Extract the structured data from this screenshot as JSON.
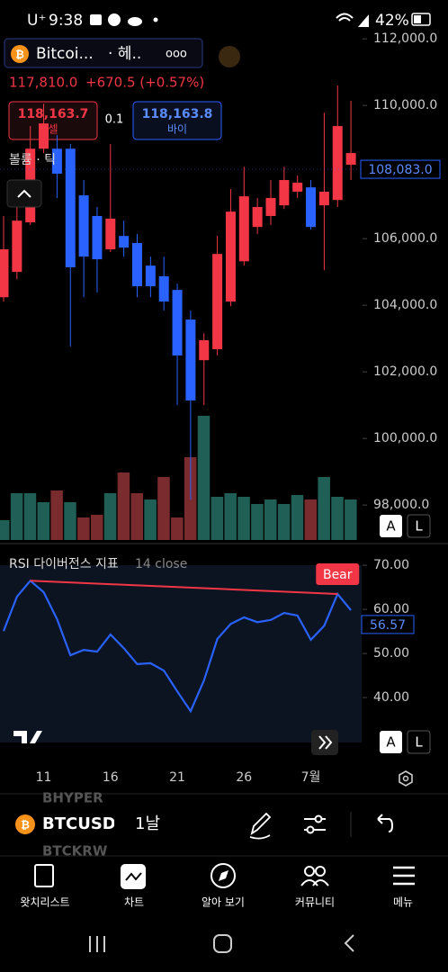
{
  "status_bar": {
    "carrier": "U⁺",
    "time": "9:38",
    "battery": "42%"
  },
  "header": {
    "symbol": "Bitcoi...",
    "exchange": "· 헤..",
    "more": "ooo",
    "price": "117,810.0",
    "change": "+670.5 (+0.57%)"
  },
  "trade": {
    "sell_price": "118,163.7",
    "sell": "셀",
    "spread": "0.1",
    "buy_price": "118,163.8",
    "buy": "바이"
  },
  "volume_label": "볼륨 · 틱",
  "scale_buttons": {
    "auto": "A",
    "log": "L"
  },
  "chart_data": [
    {
      "type": "candlestick",
      "categories": [
        null,
        null,
        null,
        "11",
        null,
        null,
        null,
        null,
        "16",
        null,
        null,
        null,
        null,
        "21",
        null,
        null,
        null,
        null,
        "26",
        null,
        null,
        null,
        null,
        "7월",
        null,
        null,
        null
      ],
      "open": [
        104240,
        105000,
        106490,
        108700,
        108700,
        108700,
        107300,
        106680,
        105680,
        106080,
        105870,
        105190,
        104870,
        104460,
        103570,
        102350,
        102680,
        104110,
        105320,
        106350,
        106680,
        107000,
        107410,
        107540,
        107000,
        107160,
        108220
      ],
      "high": [
        106680,
        107350,
        109380,
        110050,
        109110,
        108840,
        107760,
        106950,
        108840,
        106540,
        106140,
        105460,
        105460,
        104650,
        103840,
        103160,
        106080,
        107490,
        108160,
        107220,
        107760,
        108160,
        107890,
        107760,
        109780,
        110600,
        110140
      ],
      "low": [
        104110,
        104780,
        106410,
        108570,
        107220,
        102760,
        104240,
        104380,
        105600,
        105460,
        104240,
        104240,
        103840,
        101000,
        98160,
        101000,
        102490,
        103970,
        105190,
        106140,
        106410,
        106890,
        107220,
        106270,
        105050,
        106950,
        107760
      ],
      "close": [
        105680,
        106540,
        108700,
        109460,
        107950,
        105140,
        105460,
        105380,
        106600,
        105730,
        104570,
        104570,
        104110,
        102490,
        101140,
        102950,
        105540,
        106810,
        107270,
        106950,
        107220,
        107760,
        107680,
        106350,
        107410,
        109380,
        108570
      ],
      "up_color": "#f23645",
      "down_color": "#2962ff",
      "volume": {
        "values": [
          22,
          52,
          52,
          42,
          55,
          42,
          25,
          28,
          52,
          75,
          52,
          45,
          70,
          25,
          92,
          138,
          48,
          52,
          48,
          40,
          45,
          40,
          50,
          45,
          70,
          48,
          45
        ],
        "colors": [
          "#1f5f55",
          "#1f5f55",
          "#1f5f55",
          "#1f5f55",
          "#7a2b2e",
          "#1f5f55",
          "#7a2b2e",
          "#7a2b2e",
          "#1f5f55",
          "#7a2b2e",
          "#7a2b2e",
          "#1f5f55",
          "#7a2b2e",
          "#7a2b2e",
          "#7a2b2e",
          "#1f5f55",
          "#1f5f55",
          "#1f5f55",
          "#1f5f55",
          "#1f5f55",
          "#1f5f55",
          "#1f5f55",
          "#1f5f55",
          "#7a2b2e",
          "#1f5f55",
          "#1f5f55",
          "#1f5f55"
        ]
      },
      "ylim": [
        96950,
        112220
      ],
      "yticks": [
        {
          "value": 98000,
          "label": "98,000.0"
        },
        {
          "value": 100000,
          "label": "100,000.0"
        },
        {
          "value": 102000,
          "label": "102,000.0"
        },
        {
          "value": 104000,
          "label": "104,000.0"
        },
        {
          "value": 106000,
          "label": "106,000.0"
        },
        {
          "value": 108000,
          "label": "108,000.0"
        },
        {
          "value": 110000,
          "label": "110,000.0"
        },
        {
          "value": 112000,
          "label": "112,000.0"
        }
      ],
      "last_price": {
        "value": 108083,
        "label": "108,083.0"
      }
    },
    {
      "type": "line",
      "title": "RSI 다이버전스 지표",
      "subtitle": "14 close",
      "values": [
        55.1,
        62.9,
        66.5,
        63.9,
        57.8,
        49.6,
        50.8,
        50.4,
        54.3,
        51.2,
        47.6,
        47.8,
        46.1,
        41.4,
        36.9,
        43.9,
        53.3,
        56.7,
        58.2,
        57.1,
        57.6,
        59.2,
        58.6,
        53.1,
        56.3,
        63.5,
        59.8
      ],
      "color": "#2962ff",
      "annotation": "Bear",
      "annotation_color": "#f23645",
      "ylim": [
        24.7,
        73.7
      ],
      "yticks": [
        {
          "value": 40,
          "label": "40.00"
        },
        {
          "value": 50,
          "label": "50.00"
        },
        {
          "value": 60,
          "label": "60.00"
        },
        {
          "value": 70,
          "label": "70.00"
        }
      ],
      "last_value": {
        "value": 56.57,
        "label": "56.57"
      }
    }
  ],
  "toolbar": {
    "ghost_above": "BHYPER",
    "symbol": "BTCUSD",
    "interval": "1날",
    "ghost_below": "BTCKRW"
  },
  "nav": [
    "왓치리스트",
    "차트",
    "알아 보기",
    "커뮤니티",
    "메뉴"
  ]
}
